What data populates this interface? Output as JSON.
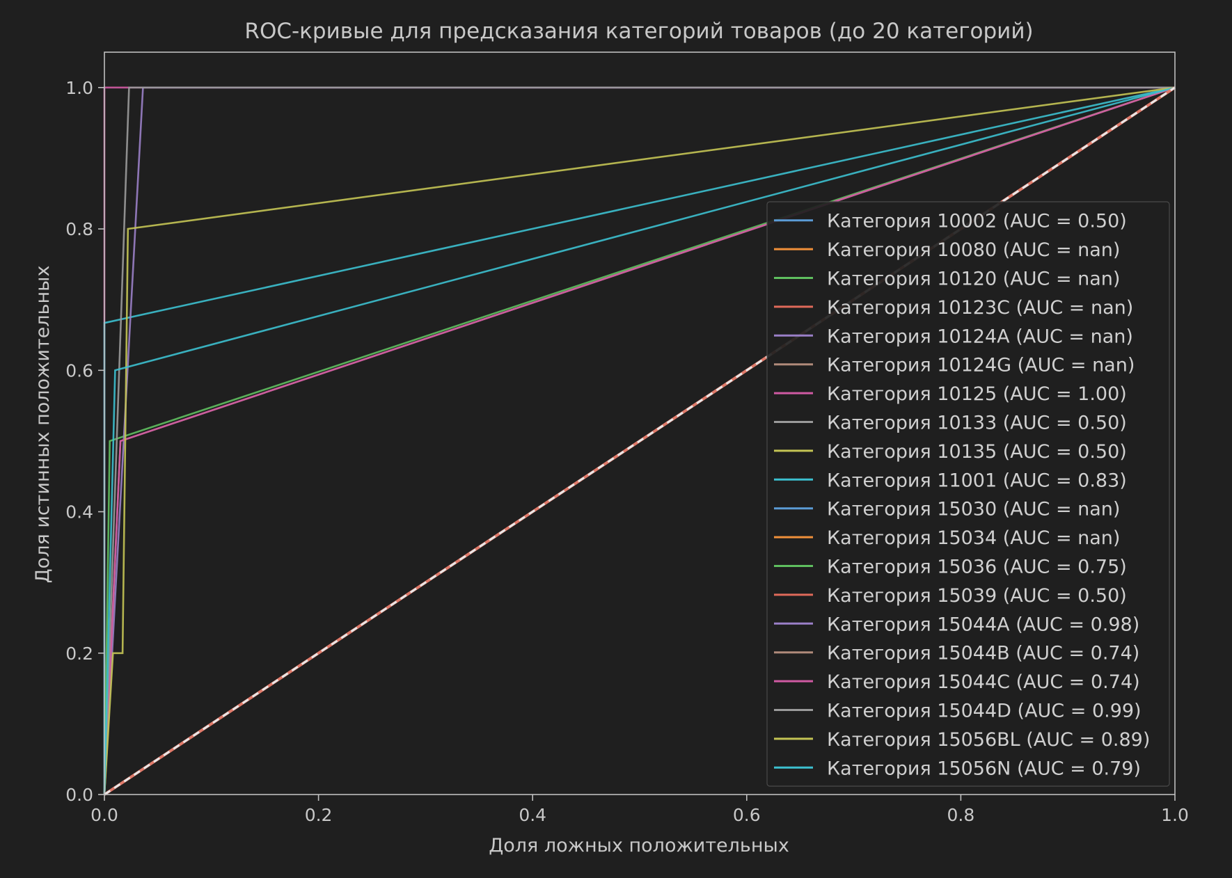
{
  "chart_data": {
    "type": "line",
    "title": "ROC-кривые для предсказания категорий товаров (до 20 категорий)",
    "xlabel": "Доля ложных положительных",
    "ylabel": "Доля истинных положительных",
    "xlim": [
      0.0,
      1.0
    ],
    "ylim": [
      0.0,
      1.05
    ],
    "xticks": [
      "0.0",
      "0.2",
      "0.4",
      "0.6",
      "0.8",
      "1.0"
    ],
    "yticks": [
      "0.0",
      "0.2",
      "0.4",
      "0.6",
      "0.8",
      "1.0"
    ],
    "grid": false,
    "legend_position": "center-right",
    "colors": {
      "background": "#1f1f1f",
      "axes_face": "#1f1f1f",
      "spine": "#bfbfbf",
      "text": "#c8c8c8",
      "diagonal": "#e8e8e8",
      "diagonal_dash": "#e07a6a"
    },
    "series": [
      {
        "name": "Категория 10002 (AUC = 0.50)",
        "color": "#5b9bd5",
        "x": [
          0,
          1
        ],
        "y": [
          0,
          1
        ]
      },
      {
        "name": "Категория 10080 (AUC = nan)",
        "color": "#f0903a",
        "x": [],
        "y": []
      },
      {
        "name": "Категория 10120 (AUC = nan)",
        "color": "#5fbf5f",
        "x": [],
        "y": []
      },
      {
        "name": "Категория 10123C (AUC = nan)",
        "color": "#e06a5a",
        "x": [],
        "y": []
      },
      {
        "name": "Категория 10124A (AUC = nan)",
        "color": "#9a7fc7",
        "x": [],
        "y": []
      },
      {
        "name": "Категория 10124G (AUC = nan)",
        "color": "#b08a7a",
        "x": [],
        "y": []
      },
      {
        "name": "Категория 10125 (AUC = 1.00)",
        "color": "#d05aa3",
        "x": [
          0,
          0,
          0.02,
          1
        ],
        "y": [
          0,
          1,
          1,
          1
        ]
      },
      {
        "name": "Категория 10133 (AUC = 0.50)",
        "color": "#9a9a9a",
        "x": [
          0,
          1
        ],
        "y": [
          0,
          1
        ]
      },
      {
        "name": "Категория 10135 (AUC = 0.50)",
        "color": "#c4c454",
        "x": [
          0,
          1
        ],
        "y": [
          0,
          1
        ]
      },
      {
        "name": "Категория 11001 (AUC = 0.83)",
        "color": "#3cc0cf",
        "x": [
          0,
          0,
          1
        ],
        "y": [
          0,
          0.667,
          1
        ]
      },
      {
        "name": "Категория 15030 (AUC = nan)",
        "color": "#5b9bd5",
        "x": [],
        "y": []
      },
      {
        "name": "Категория 15034 (AUC = nan)",
        "color": "#f0903a",
        "x": [],
        "y": []
      },
      {
        "name": "Категория 15036 (AUC = 0.75)",
        "color": "#5fbf5f",
        "x": [
          0,
          0.005,
          1
        ],
        "y": [
          0,
          0.5,
          1
        ]
      },
      {
        "name": "Категория 15039 (AUC = 0.50)",
        "color": "#e06a5a",
        "x": [
          0,
          1
        ],
        "y": [
          0,
          1
        ]
      },
      {
        "name": "Категория 15044A (AUC = 0.98)",
        "color": "#9a7fc7",
        "x": [
          0,
          0.036,
          1
        ],
        "y": [
          0,
          1,
          1
        ]
      },
      {
        "name": "Категория 15044B (AUC = 0.74)",
        "color": "#b08a7a",
        "x": [
          0,
          0.015,
          1
        ],
        "y": [
          0,
          0.5,
          1
        ]
      },
      {
        "name": "Категория 15044C (AUC = 0.74)",
        "color": "#d05aa3",
        "x": [
          0,
          0.015,
          1
        ],
        "y": [
          0,
          0.5,
          1
        ]
      },
      {
        "name": "Категория 15044D (AUC = 0.99)",
        "color": "#9a9a9a",
        "x": [
          0,
          0.023,
          1
        ],
        "y": [
          0,
          1,
          1
        ]
      },
      {
        "name": "Категория 15056BL (AUC = 0.89)",
        "color": "#c4c454",
        "x": [
          0,
          0.008,
          0.017,
          0.022,
          1
        ],
        "y": [
          0,
          0.2,
          0.2,
          0.8,
          1
        ]
      },
      {
        "name": "Категория 15056N (AUC = 0.79)",
        "color": "#3cc0cf",
        "x": [
          0,
          0.01,
          1
        ],
        "y": [
          0,
          0.6,
          1
        ]
      }
    ],
    "diagonal": {
      "x": [
        0,
        1
      ],
      "y": [
        0,
        1
      ]
    }
  }
}
